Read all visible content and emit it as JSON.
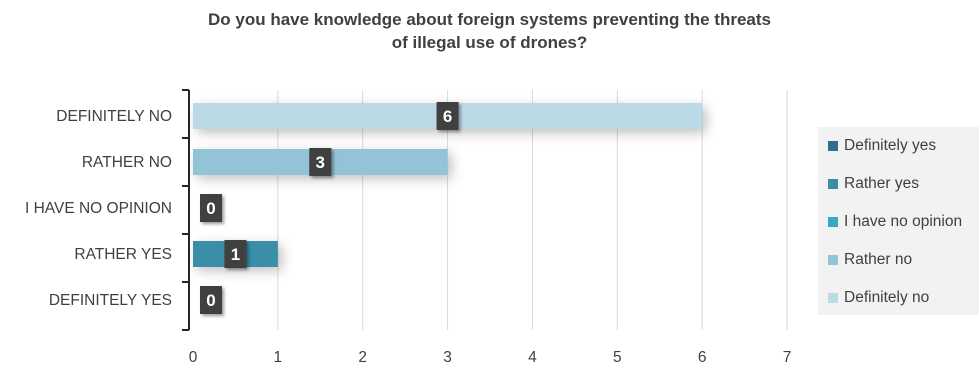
{
  "chart_data": {
    "type": "bar",
    "orientation": "horizontal",
    "title": "Do you have knowledge about foreign systems preventing the threats of illegal use of drones?",
    "title_lines": [
      "Do you have knowledge about foreign systems preventing the threats",
      "of illegal use of drones?"
    ],
    "categories": [
      "DEFINITELY NO",
      "RATHER NO",
      "I HAVE NO OPINION",
      "RATHER YES",
      "DEFINITELY YES"
    ],
    "values": [
      6,
      3,
      0,
      1,
      0
    ],
    "data_labels": [
      "6",
      "3",
      "0",
      "1",
      "0"
    ],
    "bar_colors": [
      "#bcdae6",
      "#92c3d6",
      "#36a9c0",
      "#3a8ea8",
      "#2f6f8c"
    ],
    "xlim": [
      0,
      7
    ],
    "x_ticks": [
      "0",
      "1",
      "2",
      "3",
      "4",
      "5",
      "6",
      "7"
    ],
    "grid": true,
    "legend": {
      "placement": "right",
      "items": [
        {
          "label": "Definitely yes",
          "color": "#2f6f8c"
        },
        {
          "label": "Rather yes",
          "color": "#3a8ea8"
        },
        {
          "label": "I have no opinion",
          "color": "#36a9c0"
        },
        {
          "label": "Rather no",
          "color": "#92c3d6"
        },
        {
          "label": "Definitely no",
          "color": "#bcdae6"
        }
      ]
    },
    "xlabel": "",
    "ylabel": ""
  }
}
